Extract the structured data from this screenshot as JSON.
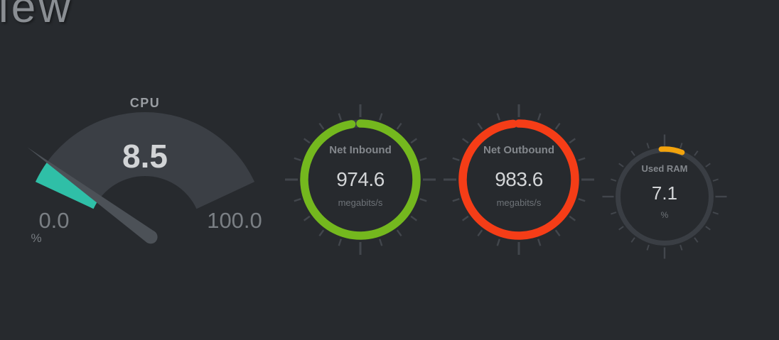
{
  "page": {
    "heading_fragment": "iew",
    "background": "#272a2e"
  },
  "theme": {
    "dial_color": "#3b3f45",
    "needle_color": "#4c5157",
    "track_color": "#3a3e44",
    "tick_color": "#42464c"
  },
  "chart_data": {
    "type": "gauge-dashboard",
    "gauges": [
      {
        "kind": "dial",
        "title": "CPU",
        "value": 8.5,
        "value_text": "8.5",
        "min": 0,
        "max": 100,
        "min_label": "0.0",
        "max_label": "100.0",
        "unit": "%",
        "fill_color": "#2fbfa7"
      },
      {
        "kind": "ring",
        "title": "Net Inbound",
        "value": 974.6,
        "value_text": "974.6",
        "unit": "megabits/s",
        "fill_fraction": 0.975,
        "ring_color": "#74b81e"
      },
      {
        "kind": "ring",
        "title": "Net Outbound",
        "value": 983.6,
        "value_text": "983.6",
        "unit": "megabits/s",
        "fill_fraction": 0.984,
        "ring_color": "#f53d17"
      },
      {
        "kind": "ring",
        "title": "Used RAM",
        "value": 7.1,
        "value_text": "7.1",
        "unit": "%",
        "fill_fraction": 0.071,
        "ring_color": "#f2a30d"
      }
    ]
  }
}
